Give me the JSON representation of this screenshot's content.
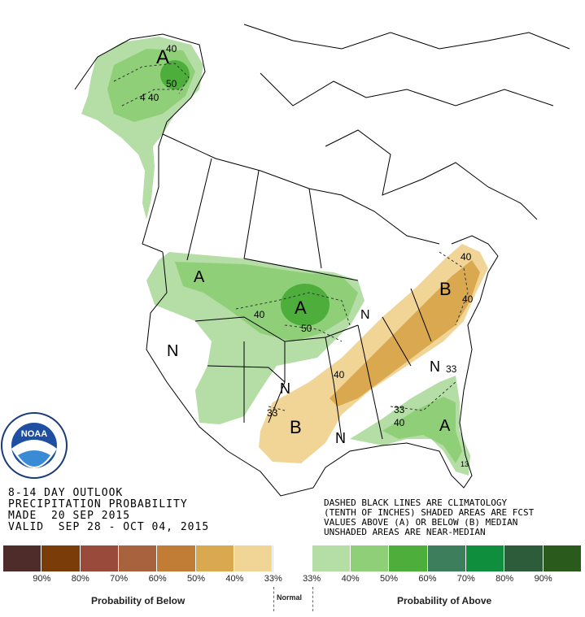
{
  "title_lines": {
    "line1": "8-14 DAY OUTLOOK",
    "line2": "PRECIPITATION PROBABILITY",
    "line3": "MADE  20 SEP 2015",
    "line4": "VALID  SEP 28 - OCT 04, 2015"
  },
  "notes": {
    "line1": "DASHED BLACK LINES ARE CLIMATOLOGY",
    "line2": "(TENTH OF INCHES) SHADED AREAS ARE FCST",
    "line3": "VALUES ABOVE (A) OR BELOW (B) MEDIAN",
    "line4": "UNSHADED AREAS ARE NEAR-MEDIAN"
  },
  "logo": {
    "text": "NOAA",
    "ring_text": "NATIONAL OCEANIC AND ATMOSPHERIC ADMINISTRATION · U.S. DEPARTMENT OF COMMERCE"
  },
  "map_labels": {
    "alaska_A": "A",
    "alaska_40a": "40",
    "alaska_50": "50",
    "alaska_40b": "40",
    "alaska_4": "4",
    "north_A": "A",
    "plains_A": "A",
    "plains_40": "40",
    "plains_50": "50",
    "west_N": "N",
    "tx_N": "N",
    "tx_B": "B",
    "tx_33": "33",
    "gulf_N": "N",
    "ne_B": "B",
    "ne_40a": "40",
    "ne_40b": "40",
    "mid_40": "40",
    "se_N": "N",
    "se_33a": "33",
    "se_33b": "33",
    "se_40": "40",
    "se_A": "A",
    "glakes_N": "N",
    "fl_13": "13"
  },
  "legend": {
    "colors": [
      "#4d2c2a",
      "#7a3d0a",
      "#9a4a3a",
      "#a8623e",
      "#c17c36",
      "#d9a84f",
      "#f0d596",
      "#ffffff",
      "#b5dda6",
      "#8fcf78",
      "#4dae3b",
      "#3d7f5c",
      "#0f8e3e",
      "#2c5c3a",
      "#2a5b1c"
    ],
    "pcts": [
      "90%",
      "80%",
      "70%",
      "60%",
      "50%",
      "40%",
      "33%",
      "33%",
      "40%",
      "50%",
      "60%",
      "70%",
      "80%",
      "90%"
    ],
    "below_label": "Probability of Below",
    "normal_label": "Normal",
    "above_label": "Probability of Above"
  }
}
